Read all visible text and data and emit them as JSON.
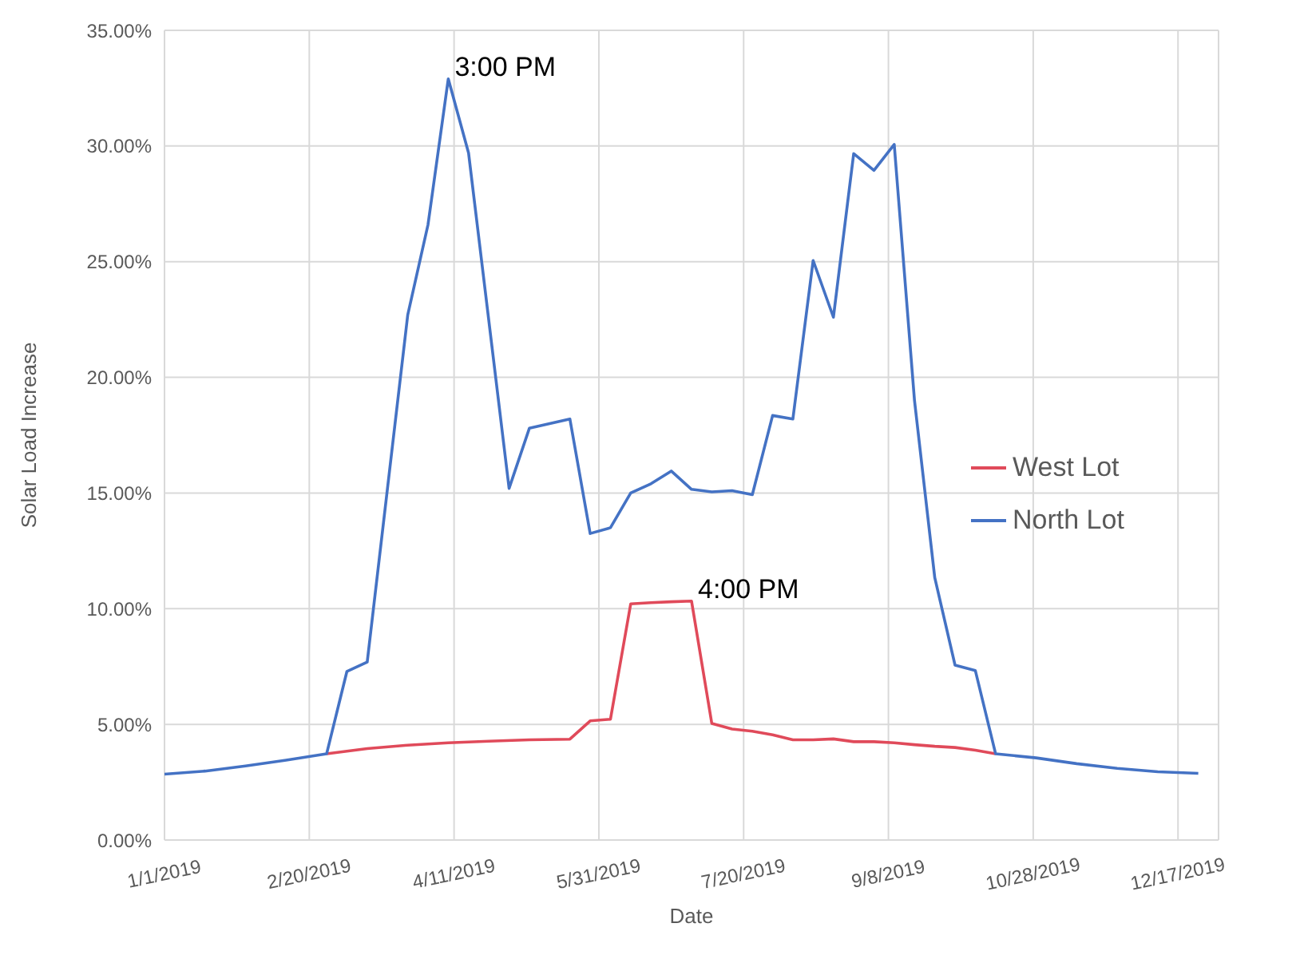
{
  "chart_data": {
    "type": "line",
    "xlabel": "Date",
    "ylabel": "Solar Load Increase",
    "xlim": [
      "2019-01-01",
      "2019-12-31"
    ],
    "xticks": [
      {
        "value": "2019-01-01",
        "label": "1/1/2019"
      },
      {
        "value": "2019-02-20",
        "label": "2/20/2019"
      },
      {
        "value": "2019-04-11",
        "label": "4/11/2019"
      },
      {
        "value": "2019-05-31",
        "label": "5/31/2019"
      },
      {
        "value": "2019-07-20",
        "label": "7/20/2019"
      },
      {
        "value": "2019-09-08",
        "label": "9/8/2019"
      },
      {
        "value": "2019-10-28",
        "label": "10/28/2019"
      },
      {
        "value": "2019-12-17",
        "label": "12/17/2019"
      }
    ],
    "ylim": [
      0,
      35
    ],
    "yticks": [
      {
        "value": 0,
        "label": "0.00%"
      },
      {
        "value": 5,
        "label": "5.00%"
      },
      {
        "value": 10,
        "label": "10.00%"
      },
      {
        "value": 15,
        "label": "15.00%"
      },
      {
        "value": 20,
        "label": "20.00%"
      },
      {
        "value": 25,
        "label": "25.00%"
      },
      {
        "value": 30,
        "label": "30.00%"
      },
      {
        "value": 35,
        "label": "35.00%"
      }
    ],
    "grid": true,
    "legend": "right",
    "marker": "none",
    "line_style": "solid",
    "annotations": [
      {
        "text": "3:00 PM",
        "x": "2019-04-09",
        "y": 32.9
      },
      {
        "text": "4:00 PM",
        "x": "2019-07-02",
        "y": 10.33
      }
    ],
    "series": [
      {
        "name": "West Lot",
        "color": "#e04a5a",
        "x": [
          "2019-02-26",
          "2019-03-12",
          "2019-03-26",
          "2019-04-09",
          "2019-04-23",
          "2019-05-07",
          "2019-05-21",
          "2019-05-28",
          "2019-06-04",
          "2019-06-11",
          "2019-06-18",
          "2019-06-25",
          "2019-07-02",
          "2019-07-09",
          "2019-07-16",
          "2019-07-23",
          "2019-07-30",
          "2019-08-06",
          "2019-08-13",
          "2019-08-20",
          "2019-08-27",
          "2019-09-03",
          "2019-09-10",
          "2019-09-17",
          "2019-09-24",
          "2019-10-01",
          "2019-10-08",
          "2019-10-15"
        ],
        "values": [
          3.73,
          3.95,
          4.1,
          4.2,
          4.27,
          4.33,
          4.36,
          5.15,
          5.22,
          10.21,
          10.26,
          10.3,
          10.33,
          5.04,
          4.8,
          4.7,
          4.55,
          4.33,
          4.33,
          4.37,
          4.25,
          4.25,
          4.2,
          4.12,
          4.05,
          4.0,
          3.88,
          3.73
        ]
      },
      {
        "name": "North Lot",
        "color": "#4472c4",
        "x": [
          "2019-01-01",
          "2019-01-15",
          "2019-01-29",
          "2019-02-12",
          "2019-02-26",
          "2019-03-05",
          "2019-03-12",
          "2019-03-26",
          "2019-04-02",
          "2019-04-09",
          "2019-04-16",
          "2019-04-30",
          "2019-05-07",
          "2019-05-21",
          "2019-05-28",
          "2019-06-04",
          "2019-06-11",
          "2019-06-18",
          "2019-06-25",
          "2019-07-02",
          "2019-07-09",
          "2019-07-16",
          "2019-07-23",
          "2019-07-30",
          "2019-08-06",
          "2019-08-13",
          "2019-08-20",
          "2019-08-27",
          "2019-09-03",
          "2019-09-10",
          "2019-09-17",
          "2019-09-24",
          "2019-10-01",
          "2019-10-08",
          "2019-10-15",
          "2019-10-29",
          "2019-11-12",
          "2019-11-26",
          "2019-12-10",
          "2019-12-24"
        ],
        "values": [
          2.85,
          2.98,
          3.2,
          3.45,
          3.73,
          7.29,
          7.69,
          22.7,
          26.6,
          32.9,
          29.7,
          15.2,
          17.8,
          18.2,
          13.25,
          13.5,
          15.0,
          15.4,
          15.95,
          15.16,
          15.05,
          15.1,
          14.93,
          18.35,
          18.2,
          25.05,
          22.6,
          29.67,
          28.95,
          30.07,
          19.0,
          11.34,
          7.56,
          7.33,
          3.73,
          3.55,
          3.3,
          3.1,
          2.95,
          2.88
        ]
      }
    ]
  }
}
